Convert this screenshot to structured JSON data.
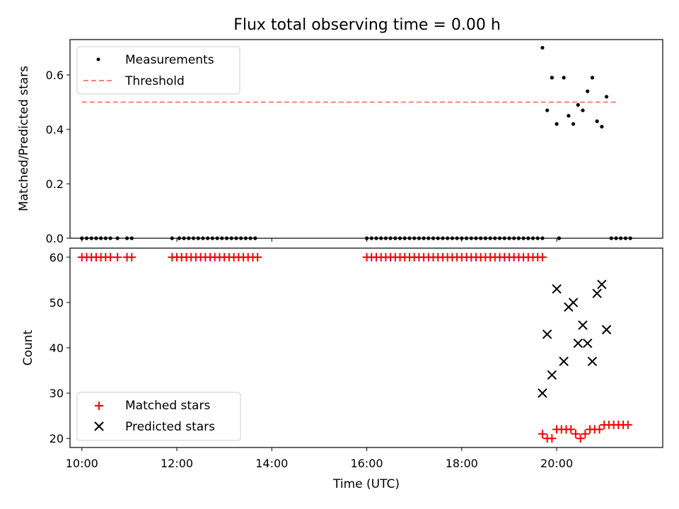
{
  "chart_data": {
    "title": "Flux total observing time = 0.00 h",
    "xlabel": "Time (UTC)",
    "xlim": [
      "09:45",
      "22:14"
    ],
    "xticks": [
      "10:00",
      "12:00",
      "14:00",
      "16:00",
      "18:00",
      "20:00"
    ],
    "panels": [
      {
        "type": "scatter",
        "ylabel": "Matched/Predicted stars",
        "ylim": [
          0,
          0.73
        ],
        "yticks": [
          "0.0",
          "0.2",
          "0.4",
          "0.6"
        ],
        "legend": {
          "position": "upper-left",
          "entries": [
            "Measurements",
            "Threshold"
          ]
        },
        "threshold": {
          "name": "Threshold",
          "value": 0.5,
          "x_range": [
            "10:00",
            "21:18"
          ],
          "color": "#ff7f7f",
          "style": "dashed"
        },
        "series": [
          {
            "name": "Measurements",
            "color": "#000000",
            "marker": "dot",
            "points": [
              [
                "10:00",
                0
              ],
              [
                "10:06",
                0
              ],
              [
                "10:12",
                0
              ],
              [
                "10:18",
                0
              ],
              [
                "10:24",
                0
              ],
              [
                "10:30",
                0
              ],
              [
                "10:36",
                0
              ],
              [
                "10:45",
                0
              ],
              [
                "10:57",
                0
              ],
              [
                "11:03",
                0
              ],
              [
                "11:54",
                0
              ],
              [
                "12:03",
                0
              ],
              [
                "12:09",
                0
              ],
              [
                "12:15",
                0
              ],
              [
                "12:21",
                0
              ],
              [
                "12:27",
                0
              ],
              [
                "12:33",
                0
              ],
              [
                "12:39",
                0
              ],
              [
                "12:45",
                0
              ],
              [
                "12:51",
                0
              ],
              [
                "12:57",
                0
              ],
              [
                "13:03",
                0
              ],
              [
                "13:09",
                0
              ],
              [
                "13:15",
                0
              ],
              [
                "13:21",
                0
              ],
              [
                "13:27",
                0
              ],
              [
                "13:33",
                0
              ],
              [
                "13:39",
                0
              ],
              [
                "16:00",
                0
              ],
              [
                "16:06",
                0
              ],
              [
                "16:12",
                0
              ],
              [
                "16:18",
                0
              ],
              [
                "16:24",
                0
              ],
              [
                "16:30",
                0
              ],
              [
                "16:36",
                0
              ],
              [
                "16:42",
                0
              ],
              [
                "16:48",
                0
              ],
              [
                "16:54",
                0
              ],
              [
                "17:00",
                0
              ],
              [
                "17:06",
                0
              ],
              [
                "17:12",
                0
              ],
              [
                "17:18",
                0
              ],
              [
                "17:24",
                0
              ],
              [
                "17:30",
                0
              ],
              [
                "17:36",
                0
              ],
              [
                "17:42",
                0
              ],
              [
                "17:48",
                0
              ],
              [
                "17:54",
                0
              ],
              [
                "18:00",
                0
              ],
              [
                "18:06",
                0
              ],
              [
                "18:12",
                0
              ],
              [
                "18:18",
                0
              ],
              [
                "18:24",
                0
              ],
              [
                "18:30",
                0
              ],
              [
                "18:36",
                0
              ],
              [
                "18:42",
                0
              ],
              [
                "18:48",
                0
              ],
              [
                "18:54",
                0
              ],
              [
                "19:00",
                0
              ],
              [
                "19:06",
                0
              ],
              [
                "19:12",
                0
              ],
              [
                "19:18",
                0
              ],
              [
                "19:24",
                0
              ],
              [
                "19:30",
                0
              ],
              [
                "19:36",
                0
              ],
              [
                "19:42",
                0
              ],
              [
                "19:42",
                0.7
              ],
              [
                "19:48",
                0.47
              ],
              [
                "19:54",
                0.59
              ],
              [
                "20:00",
                0.42
              ],
              [
                "20:03",
                0
              ],
              [
                "20:09",
                0.59
              ],
              [
                "20:15",
                0.45
              ],
              [
                "20:21",
                0.42
              ],
              [
                "20:27",
                0.49
              ],
              [
                "20:33",
                0.47
              ],
              [
                "20:39",
                0.54
              ],
              [
                "20:45",
                0.59
              ],
              [
                "20:51",
                0.43
              ],
              [
                "20:57",
                0.41
              ],
              [
                "21:03",
                0.52
              ],
              [
                "21:09",
                0
              ],
              [
                "21:15",
                0
              ],
              [
                "21:21",
                0
              ],
              [
                "21:27",
                0
              ],
              [
                "21:33",
                0
              ]
            ]
          }
        ]
      },
      {
        "type": "scatter",
        "ylabel": "Count",
        "ylim": [
          18,
          62
        ],
        "yticks": [
          "20",
          "30",
          "40",
          "50",
          "60"
        ],
        "legend": {
          "position": "lower-left",
          "entries": [
            "Matched stars",
            "Predicted stars"
          ]
        },
        "series": [
          {
            "name": "Matched stars",
            "color": "#ff0000",
            "marker": "plus",
            "points": [
              [
                "10:00",
                60
              ],
              [
                "10:06",
                60
              ],
              [
                "10:12",
                60
              ],
              [
                "10:18",
                60
              ],
              [
                "10:24",
                60
              ],
              [
                "10:30",
                60
              ],
              [
                "10:36",
                60
              ],
              [
                "10:45",
                60
              ],
              [
                "10:57",
                60
              ],
              [
                "11:03",
                60
              ],
              [
                "11:54",
                60
              ],
              [
                "12:00",
                60
              ],
              [
                "12:06",
                60
              ],
              [
                "12:12",
                60
              ],
              [
                "12:18",
                60
              ],
              [
                "12:24",
                60
              ],
              [
                "12:30",
                60
              ],
              [
                "12:36",
                60
              ],
              [
                "12:42",
                60
              ],
              [
                "12:48",
                60
              ],
              [
                "12:54",
                60
              ],
              [
                "13:00",
                60
              ],
              [
                "13:06",
                60
              ],
              [
                "13:12",
                60
              ],
              [
                "13:18",
                60
              ],
              [
                "13:24",
                60
              ],
              [
                "13:30",
                60
              ],
              [
                "13:36",
                60
              ],
              [
                "13:42",
                60
              ],
              [
                "16:00",
                60
              ],
              [
                "16:06",
                60
              ],
              [
                "16:12",
                60
              ],
              [
                "16:18",
                60
              ],
              [
                "16:24",
                60
              ],
              [
                "16:30",
                60
              ],
              [
                "16:36",
                60
              ],
              [
                "16:42",
                60
              ],
              [
                "16:48",
                60
              ],
              [
                "16:54",
                60
              ],
              [
                "17:00",
                60
              ],
              [
                "17:06",
                60
              ],
              [
                "17:12",
                60
              ],
              [
                "17:18",
                60
              ],
              [
                "17:24",
                60
              ],
              [
                "17:30",
                60
              ],
              [
                "17:36",
                60
              ],
              [
                "17:42",
                60
              ],
              [
                "17:48",
                60
              ],
              [
                "17:54",
                60
              ],
              [
                "18:00",
                60
              ],
              [
                "18:06",
                60
              ],
              [
                "18:12",
                60
              ],
              [
                "18:18",
                60
              ],
              [
                "18:24",
                60
              ],
              [
                "18:30",
                60
              ],
              [
                "18:36",
                60
              ],
              [
                "18:42",
                60
              ],
              [
                "18:48",
                60
              ],
              [
                "18:54",
                60
              ],
              [
                "19:00",
                60
              ],
              [
                "19:06",
                60
              ],
              [
                "19:12",
                60
              ],
              [
                "19:18",
                60
              ],
              [
                "19:24",
                60
              ],
              [
                "19:30",
                60
              ],
              [
                "19:36",
                60
              ],
              [
                "19:42",
                60
              ],
              [
                "19:42",
                21
              ],
              [
                "19:48",
                20
              ],
              [
                "19:54",
                20
              ],
              [
                "20:00",
                22
              ],
              [
                "20:06",
                22
              ],
              [
                "20:12",
                22
              ],
              [
                "20:18",
                22
              ],
              [
                "20:24",
                21
              ],
              [
                "20:30",
                20
              ],
              [
                "20:36",
                21
              ],
              [
                "20:42",
                22
              ],
              [
                "20:48",
                22
              ],
              [
                "20:54",
                22
              ],
              [
                "21:00",
                23
              ],
              [
                "21:06",
                23
              ],
              [
                "21:12",
                23
              ],
              [
                "21:18",
                23
              ],
              [
                "21:24",
                23
              ],
              [
                "21:30",
                23
              ]
            ]
          },
          {
            "name": "Predicted stars",
            "color": "#000000",
            "marker": "x",
            "points": [
              [
                "19:42",
                30
              ],
              [
                "19:48",
                43
              ],
              [
                "19:54",
                34
              ],
              [
                "20:00",
                53
              ],
              [
                "20:09",
                37
              ],
              [
                "20:15",
                49
              ],
              [
                "20:21",
                50
              ],
              [
                "20:27",
                41
              ],
              [
                "20:33",
                45
              ],
              [
                "20:39",
                41
              ],
              [
                "20:45",
                37
              ],
              [
                "20:51",
                52
              ],
              [
                "20:57",
                54
              ],
              [
                "21:03",
                44
              ]
            ]
          }
        ]
      }
    ]
  }
}
